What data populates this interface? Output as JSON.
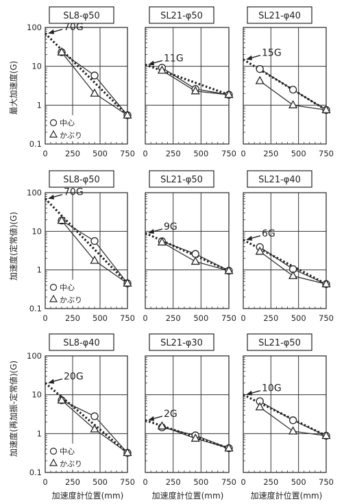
{
  "figure": {
    "y_axis_labels": [
      "最大加速度(G)",
      "加速度(定常値)(G)",
      "加速度(再加振-定常値)(G)"
    ],
    "x_axis_label": "加速度計位置(mm)",
    "x_ticks": [
      "0",
      "250",
      "500",
      "750"
    ],
    "y_ticks": [
      "100",
      "10",
      "1",
      "0.1"
    ],
    "legend": {
      "center": "中心",
      "cover": "かぶり"
    }
  },
  "chart_data": [
    {
      "type": "scatter",
      "title": "SL8-φ50",
      "x": [
        150,
        450,
        750
      ],
      "series": [
        {
          "name": "中心",
          "values": [
            23,
            5.8,
            0.55
          ]
        },
        {
          "name": "かぶり",
          "values": [
            23,
            2.0,
            0.55
          ]
        }
      ],
      "trend": {
        "x": [
          0,
          750
        ],
        "y": [
          70,
          0.55
        ]
      },
      "annotation": "70G",
      "xlim": [
        0,
        750
      ],
      "ylim": [
        0.1,
        100
      ],
      "yscale": "log",
      "legend": true
    },
    {
      "type": "scatter",
      "title": "SL21-φ50",
      "x": [
        150,
        450,
        750
      ],
      "series": [
        {
          "name": "中心",
          "values": [
            9.2,
            2.6,
            1.85
          ]
        },
        {
          "name": "かぶり",
          "values": [
            7.8,
            2.3,
            1.85
          ]
        }
      ],
      "trend": {
        "x": [
          0,
          750
        ],
        "y": [
          11,
          1.85
        ]
      },
      "annotation": "11G",
      "xlim": [
        0,
        750
      ],
      "ylim": [
        0.1,
        100
      ],
      "yscale": "log",
      "legend": false
    },
    {
      "type": "scatter",
      "title": "SL21-φ40",
      "x": [
        150,
        450,
        750
      ],
      "series": [
        {
          "name": "中心",
          "values": [
            8.5,
            2.5,
            0.75
          ]
        },
        {
          "name": "かぶり",
          "values": [
            4.2,
            1.0,
            0.75
          ]
        }
      ],
      "trend": {
        "x": [
          0,
          750
        ],
        "y": [
          15,
          0.75
        ]
      },
      "annotation": "15G",
      "xlim": [
        0,
        750
      ],
      "ylim": [
        0.1,
        100
      ],
      "yscale": "log",
      "legend": false
    },
    {
      "type": "scatter",
      "title": "SL8-φ50",
      "x": [
        150,
        450,
        750
      ],
      "series": [
        {
          "name": "中心",
          "values": [
            19,
            5.6,
            0.45
          ]
        },
        {
          "name": "かぶり",
          "values": [
            19,
            1.75,
            0.45
          ]
        }
      ],
      "trend": {
        "x": [
          0,
          750
        ],
        "y": [
          70,
          0.45
        ]
      },
      "annotation": "70G",
      "xlim": [
        0,
        750
      ],
      "ylim": [
        0.1,
        100
      ],
      "yscale": "log",
      "legend": true
    },
    {
      "type": "scatter",
      "title": "SL21-φ50",
      "x": [
        150,
        450,
        750
      ],
      "series": [
        {
          "name": "中心",
          "values": [
            5.5,
            2.6,
            0.95
          ]
        },
        {
          "name": "かぶり",
          "values": [
            5.2,
            1.65,
            0.95
          ]
        }
      ],
      "trend": {
        "x": [
          0,
          750
        ],
        "y": [
          9,
          0.95
        ]
      },
      "annotation": "9G",
      "xlim": [
        0,
        750
      ],
      "ylim": [
        0.1,
        100
      ],
      "yscale": "log",
      "legend": false
    },
    {
      "type": "scatter",
      "title": "SL21-φ40",
      "x": [
        150,
        450,
        750
      ],
      "series": [
        {
          "name": "中心",
          "values": [
            3.9,
            1.05,
            0.43
          ]
        },
        {
          "name": "かぶり",
          "values": [
            3.0,
            0.7,
            0.43
          ]
        }
      ],
      "trend": {
        "x": [
          0,
          750
        ],
        "y": [
          6,
          0.43
        ]
      },
      "annotation": "6G",
      "xlim": [
        0,
        750
      ],
      "ylim": [
        0.1,
        100
      ],
      "yscale": "log",
      "legend": false
    },
    {
      "type": "scatter",
      "title": "SL8-φ40",
      "x": [
        150,
        450,
        750
      ],
      "series": [
        {
          "name": "中心",
          "values": [
            7.2,
            2.8,
            0.32
          ]
        },
        {
          "name": "かぶり",
          "values": [
            7.2,
            1.3,
            0.32
          ]
        }
      ],
      "trend": {
        "x": [
          0,
          750
        ],
        "y": [
          20,
          0.32
        ]
      },
      "annotation": "20G",
      "xlim": [
        0,
        750
      ],
      "ylim": [
        0.1,
        100
      ],
      "yscale": "log",
      "legend": true
    },
    {
      "type": "scatter",
      "title": "SL21-φ30",
      "x": [
        150,
        450,
        750
      ],
      "series": [
        {
          "name": "中心",
          "values": [
            1.45,
            0.9,
            0.42
          ]
        },
        {
          "name": "かぶり",
          "values": [
            1.55,
            0.75,
            0.42
          ]
        }
      ],
      "trend": {
        "x": [
          0,
          750
        ],
        "y": [
          2.2,
          0.42
        ]
      },
      "annotation": "2G",
      "xlim": [
        0,
        750
      ],
      "ylim": [
        0.1,
        100
      ],
      "yscale": "log",
      "legend": false
    },
    {
      "type": "scatter",
      "title": "SL21-φ50",
      "x": [
        150,
        450,
        750
      ],
      "series": [
        {
          "name": "中心",
          "values": [
            6.8,
            2.2,
            0.88
          ]
        },
        {
          "name": "かぶり",
          "values": [
            4.8,
            1.15,
            0.88
          ]
        }
      ],
      "trend": {
        "x": [
          0,
          750
        ],
        "y": [
          10,
          0.88
        ]
      },
      "annotation": "10G",
      "xlim": [
        0,
        750
      ],
      "ylim": [
        0.1,
        100
      ],
      "yscale": "log",
      "legend": false
    }
  ]
}
